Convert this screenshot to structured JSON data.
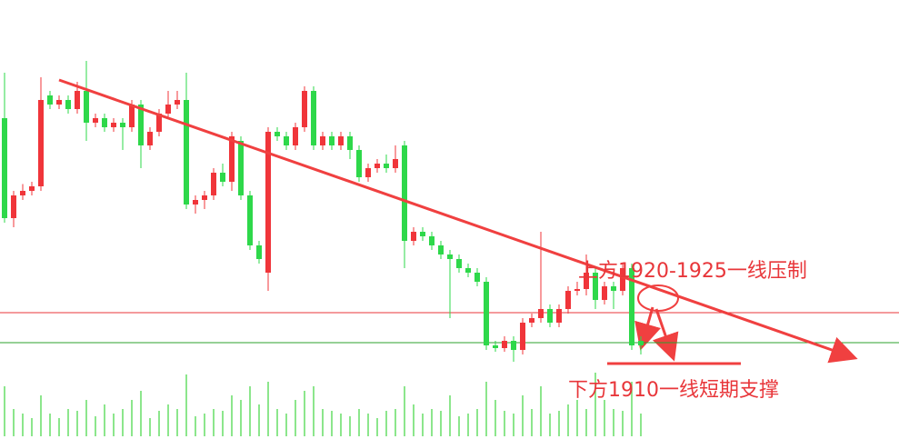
{
  "chart_data": {
    "type": "candlestick",
    "open": [
      1964,
      1942,
      1947,
      1948,
      1949,
      1969,
      1967,
      1968,
      1966,
      1970,
      1963,
      1964,
      1962,
      1963,
      1962,
      1967,
      1958,
      1961,
      1965,
      1967,
      1968,
      1945,
      1946,
      1947,
      1952,
      1950,
      1959,
      1947,
      1936,
      1930,
      1961,
      1960,
      1958,
      1962,
      1970,
      1958,
      1960,
      1958,
      1960,
      1957,
      1951,
      1953,
      1954,
      1953,
      1958,
      1937,
      1939,
      1938,
      1936,
      1934,
      1933,
      1931,
      1930,
      1928,
      1914,
      1913.4,
      1915,
      1913,
      1919,
      1920,
      1922,
      1919,
      1922,
      1926,
      1926.4,
      1930,
      1924,
      1927,
      1926,
      1931,
      1915
    ],
    "high": [
      1974,
      1948,
      1949.5,
      1950,
      1973,
      1970,
      1969,
      1969,
      1972,
      1976.6,
      1965,
      1965,
      1964,
      1964,
      1968,
      1968,
      1962,
      1966,
      1970,
      1970,
      1974,
      1947,
      1948,
      1953,
      1954,
      1961,
      1960,
      1948,
      1937,
      1962,
      1962,
      1961,
      1963,
      1971,
      1971,
      1961,
      1961,
      1961,
      1961,
      1958,
      1954,
      1955,
      1956,
      1958,
      1959,
      1940,
      1940,
      1939,
      1937,
      1935,
      1934,
      1932,
      1931,
      1929,
      1915,
      1916,
      1916,
      1920,
      1921,
      1939,
      1923,
      1923,
      1927,
      1928,
      1934,
      1931,
      1928,
      1928,
      1932,
      1932,
      1916
    ],
    "low": [
      1941,
      1940,
      1946,
      1947,
      1948,
      1966,
      1966,
      1965,
      1965,
      1959,
      1962,
      1961,
      1961,
      1957,
      1961,
      1953,
      1957,
      1960,
      1964,
      1966,
      1944,
      1943,
      1944,
      1946,
      1949,
      1948,
      1946,
      1935,
      1932,
      1926,
      1959,
      1957,
      1957,
      1961,
      1957,
      1957,
      1957,
      1957,
      1955,
      1950,
      1950,
      1952,
      1952,
      1952,
      1931,
      1936,
      1937,
      1935,
      1933,
      1920,
      1930,
      1929,
      1927,
      1913,
      1912.6,
      1912.6,
      1910.4,
      1912,
      1918,
      1919,
      1918,
      1918,
      1921,
      1925,
      1925,
      1922,
      1923,
      1922,
      1925,
      1913,
      1912
    ],
    "close": [
      1942,
      1947,
      1948,
      1949,
      1968,
      1967,
      1968,
      1966,
      1970,
      1963,
      1964,
      1962,
      1963,
      1962,
      1967,
      1958,
      1961,
      1965,
      1967,
      1968,
      1945,
      1946,
      1947,
      1952,
      1950,
      1960,
      1947,
      1936,
      1933,
      1961,
      1960,
      1958,
      1962,
      1970,
      1958,
      1960,
      1958,
      1960,
      1957,
      1951,
      1953,
      1954,
      1953,
      1955,
      1937,
      1939,
      1938,
      1936,
      1934,
      1933,
      1931,
      1930,
      1928,
      1914,
      1913.4,
      1915,
      1913,
      1919,
      1920,
      1922,
      1919,
      1922,
      1926,
      1926.4,
      1930,
      1924,
      1927,
      1926,
      1931,
      1914,
      1914
    ],
    "volume": [
      55,
      30,
      25,
      20,
      45,
      25,
      20,
      30,
      28,
      40,
      22,
      35,
      25,
      30,
      40,
      50,
      20,
      28,
      35,
      30,
      68,
      22,
      25,
      30,
      28,
      45,
      40,
      55,
      35,
      60,
      30,
      25,
      40,
      50,
      55,
      30,
      28,
      25,
      22,
      30,
      25,
      20,
      28,
      30,
      55,
      35,
      25,
      30,
      28,
      45,
      22,
      25,
      30,
      60,
      40,
      28,
      25,
      45,
      30,
      55,
      25,
      28,
      35,
      40,
      30,
      70,
      40,
      30,
      28,
      60,
      25
    ],
    "up_color": "#f0353a",
    "down_color": "#2ed84a",
    "volume_color": "#66dd66",
    "xlim": [
      -0.5,
      98.4
    ],
    "ylim": [
      1893.4,
      1990
    ],
    "vlim": [
      0,
      100
    ],
    "hlines": [
      {
        "value": 1921.2,
        "color": "#e8363a"
      },
      {
        "value": 1914.6,
        "color": "#2ca02c"
      }
    ],
    "trendline": {
      "x": [
        6,
        93.3
      ],
      "values": [
        1972.4,
        1911.4
      ],
      "color": "#f04040"
    },
    "support": {
      "x": [
        66.3,
        81
      ],
      "value": 1910,
      "color": "#f04040"
    },
    "annotations": [
      {
        "text": "上方1920-1925一线压制",
        "color": "#e8363a"
      },
      {
        "text": "下方1910一线短期支撑",
        "color": "#e8363a"
      }
    ]
  }
}
